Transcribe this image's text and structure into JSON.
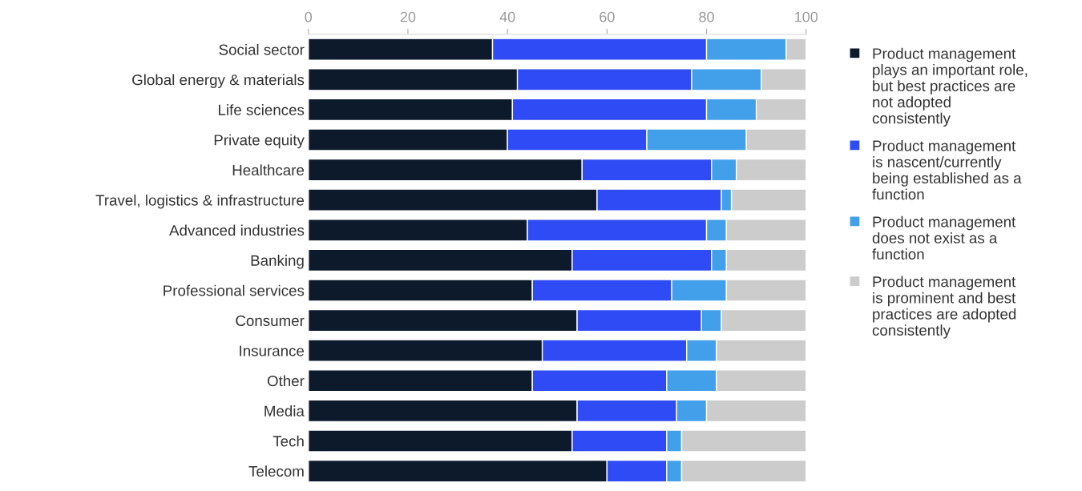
{
  "chart_data": {
    "type": "bar",
    "orientation": "horizontal",
    "stacked": true,
    "categories": [
      "Social sector",
      "Global energy & materials",
      "Life sciences",
      "Private equity",
      "Healthcare",
      "Travel, logistics & infrastructure",
      "Advanced industries",
      "Banking",
      "Professional services",
      "Consumer",
      "Insurance",
      "Other",
      "Media",
      "Tech",
      "Telecom"
    ],
    "series": [
      {
        "name": "Product management\nplays an important role,\nbut best practices are\nnot adopted\nconsistently",
        "color": "#0d1a2b",
        "values": [
          37,
          42,
          41,
          40,
          55,
          58,
          44,
          53,
          45,
          54,
          47,
          45,
          54,
          53,
          60
        ]
      },
      {
        "name": "Product management\nis nascent/currently\nbeing established as a\nfunction",
        "color": "#2f4bf5",
        "values": [
          43,
          35,
          39,
          28,
          26,
          25,
          36,
          28,
          28,
          25,
          29,
          27,
          20,
          19,
          12
        ]
      },
      {
        "name": "Product management\ndoes not exist as a\nfunction",
        "color": "#42a0ea",
        "values": [
          16,
          14,
          10,
          20,
          5,
          2,
          4,
          3,
          11,
          4,
          6,
          10,
          6,
          3,
          3
        ]
      },
      {
        "name": "Product management\nis prominent and best\npractices are adopted\nconsistently",
        "color": "#cccccc",
        "values": [
          4,
          9,
          10,
          12,
          14,
          15,
          16,
          16,
          16,
          17,
          18,
          18,
          20,
          25,
          25
        ]
      }
    ],
    "xlim": [
      0,
      100
    ],
    "xticks": [
      0,
      20,
      40,
      60,
      80,
      100
    ],
    "grid": false,
    "legend": "right"
  }
}
